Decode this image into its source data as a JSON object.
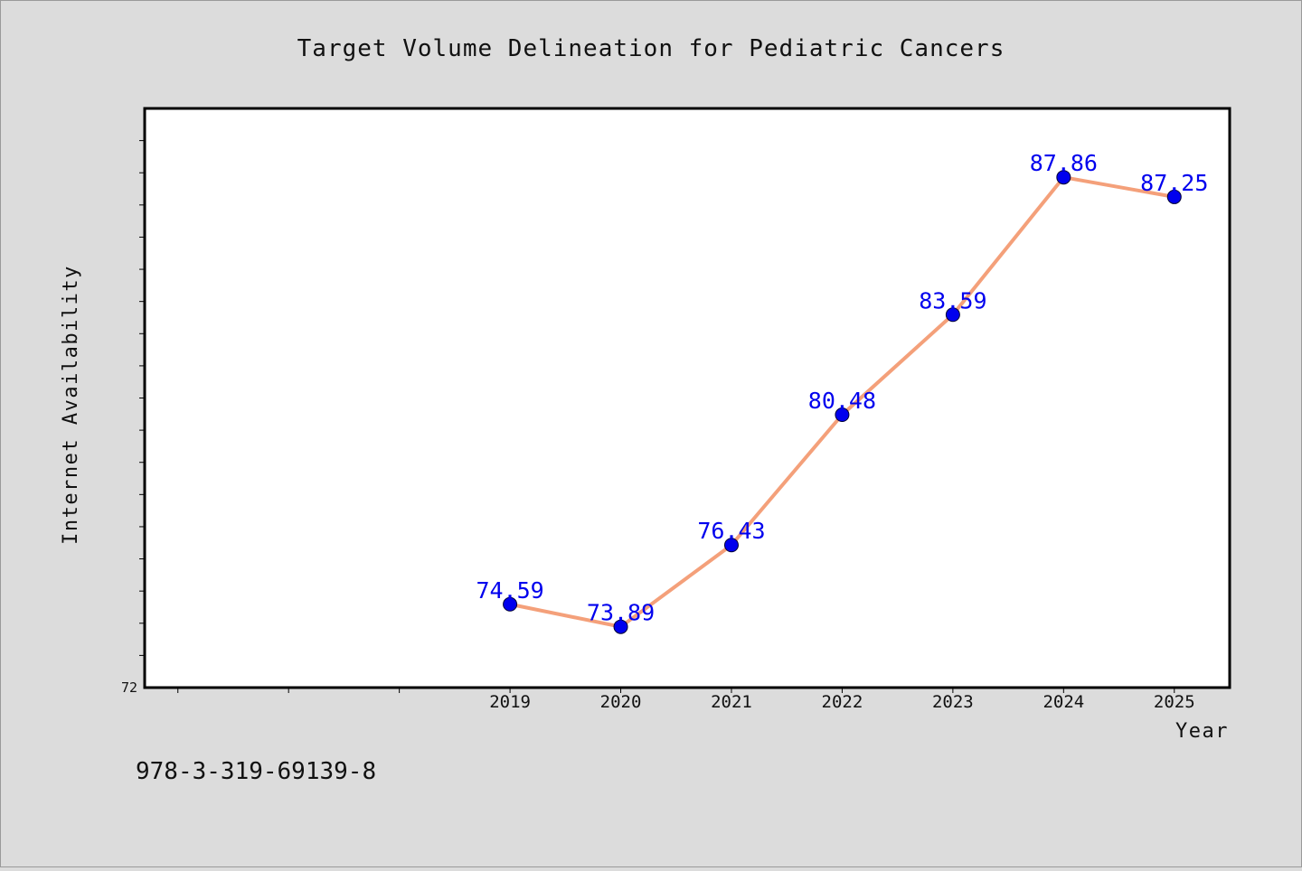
{
  "chart_data": {
    "type": "line",
    "title": "Target Volume Delineation for Pediatric Cancers",
    "xlabel": "Year",
    "ylabel": "Internet Availability",
    "x": [
      2019,
      2020,
      2021,
      2022,
      2023,
      2024,
      2025
    ],
    "series": [
      {
        "values": [
          74.59,
          73.89,
          76.43,
          80.48,
          83.59,
          87.86,
          87.25
        ],
        "labels": [
          "74.59",
          "73.89",
          "76.43",
          "80.48",
          "83.59",
          "87.86",
          "87.25"
        ]
      }
    ],
    "xlim": [
      2015.7,
      2025.5
    ],
    "ylim": [
      72,
      90
    ],
    "y_tick_labels": [
      "72"
    ],
    "grid": false,
    "legend": "none",
    "colors": {
      "line": "#f4a07a",
      "marker": "#0000ee",
      "data_label": "#0000ee",
      "background": "#dcdcdc",
      "plot_background": "#ffffff"
    }
  },
  "footer": {
    "isbn": "978-3-319-69139-8"
  }
}
